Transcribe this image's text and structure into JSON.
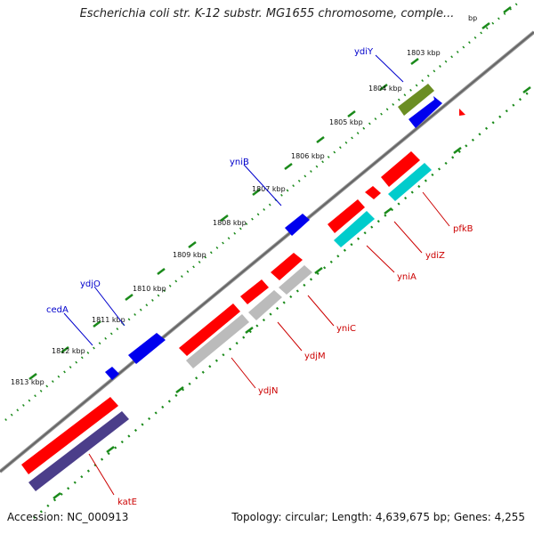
{
  "title": "Escherichia coli str. K-12 substr. MG1655 chromosome, comple...",
  "footer": {
    "accession": "Accession: NC_000913",
    "topology": "Topology: circular; Length: 4,639,675 bp; Genes: 4,255"
  },
  "colors": {
    "forward_label": "#0000cc",
    "reverse_label": "#cc0000",
    "tick": "#1a8a1a",
    "backbone": "#888888"
  },
  "ticks": [
    {
      "label": "bp"
    },
    {
      "label": "1803 kbp"
    },
    {
      "label": "1804 kbp"
    },
    {
      "label": "1805 kbp"
    },
    {
      "label": "1806 kbp"
    },
    {
      "label": "1807 kbp"
    },
    {
      "label": "1808 kbp"
    },
    {
      "label": "1809 kbp"
    },
    {
      "label": "1810 kbp"
    },
    {
      "label": "1811 kbp"
    },
    {
      "label": "1812 kbp"
    },
    {
      "label": "1813 kbp"
    }
  ],
  "genes": [
    {
      "name": "ydiY",
      "strand": "forward",
      "color": "#0000ee",
      "cds_color": "#6b8e23"
    },
    {
      "name": "yniB",
      "strand": "forward",
      "color": "#0000ee"
    },
    {
      "name": "ydjO",
      "strand": "forward",
      "color": "#0000ee"
    },
    {
      "name": "cedA",
      "strand": "forward",
      "color": "#0000ee"
    },
    {
      "name": "pfkB",
      "strand": "reverse",
      "color": "#ff0000",
      "cds_color": "#00cccc"
    },
    {
      "name": "ydiZ",
      "strand": "reverse",
      "color": "#ff0000"
    },
    {
      "name": "yniA",
      "strand": "reverse",
      "color": "#ff0000",
      "cds_color": "#00cccc"
    },
    {
      "name": "yniC",
      "strand": "reverse",
      "color": "#ff0000",
      "cds_color": "#bbbbbb"
    },
    {
      "name": "ydjM",
      "strand": "reverse",
      "color": "#ff0000",
      "cds_color": "#bbbbbb"
    },
    {
      "name": "ydjN",
      "strand": "reverse",
      "color": "#ff0000",
      "cds_color": "#bbbbbb"
    },
    {
      "name": "katE",
      "strand": "reverse",
      "color": "#ff0000",
      "cds_color": "#4b3e8a"
    }
  ]
}
